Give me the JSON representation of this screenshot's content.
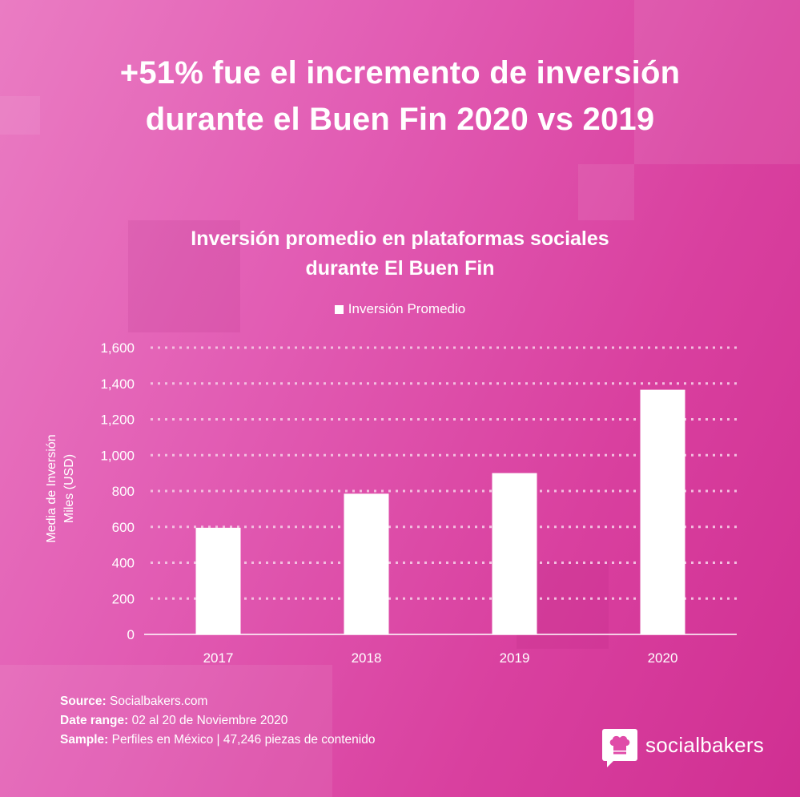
{
  "header": {
    "title_line1": "+51% fue el incremento de inversión",
    "title_line2": "durante el Buen Fin 2020 vs 2019"
  },
  "footer": {
    "source_label": "Source:",
    "source_value": " Socialbakers.com",
    "date_label": "Date range:",
    "date_value": " 02 al 20 de Noviembre 2020",
    "sample_label": "Sample:",
    "sample_value": " Perfiles en México | 47,246 piezas de contenido"
  },
  "brand": {
    "name": "socialbakers",
    "icon": "chef-hat-icon"
  },
  "colors": {
    "bar": "#ffffff",
    "grid": "#f3bfe0",
    "text": "#ffffff"
  },
  "chart_data": {
    "type": "bar",
    "title_line1": "Inversión promedio en plataformas sociales",
    "title_line2": "durante El Buen Fin",
    "legend": "Inversión Promedio",
    "ylabel_line1": "Media de Inversión",
    "ylabel_line2": "Miles (USD)",
    "xlabel": "",
    "categories": [
      "2017",
      "2018",
      "2019",
      "2020"
    ],
    "series": [
      {
        "name": "Inversión Promedio",
        "values": [
          595,
          785,
          900,
          1365
        ]
      }
    ],
    "ylim": [
      0,
      1600
    ],
    "yticks": [
      0,
      200,
      400,
      600,
      800,
      1000,
      1200,
      1400,
      1600
    ],
    "ytick_labels": [
      "0",
      "200",
      "400",
      "600",
      "800",
      "1,000",
      "1,200",
      "1,400",
      "1,600"
    ],
    "grid": true,
    "legend_position": "top-center"
  }
}
